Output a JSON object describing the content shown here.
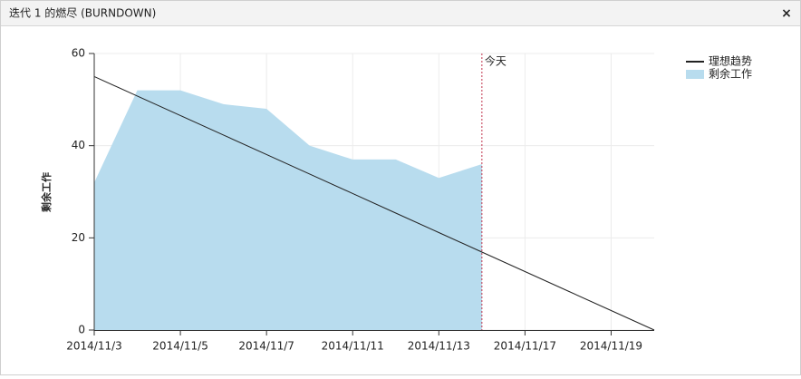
{
  "dialog": {
    "title": "迭代 1 的燃尽 (BURNDOWN)",
    "close": "×"
  },
  "chart_data": {
    "type": "line",
    "categories": [
      "2014/11/3",
      null,
      "2014/11/5",
      null,
      "2014/11/7",
      null,
      "2014/11/11",
      null,
      "2014/11/13",
      null,
      "2014/11/17",
      null,
      "2014/11/19",
      null
    ],
    "series": [
      {
        "name": "理想趋势",
        "style": "line",
        "color": "#222222",
        "values": [
          55,
          50.77,
          46.54,
          42.31,
          38.08,
          33.85,
          29.62,
          25.38,
          21.15,
          16.92,
          12.69,
          8.46,
          4.23,
          0
        ]
      },
      {
        "name": "剩余工作",
        "style": "area",
        "color": "#b8dcee",
        "values": [
          32,
          52,
          52,
          49,
          48,
          40,
          37,
          37,
          33,
          36,
          null,
          null,
          null,
          null
        ]
      }
    ],
    "ylabel": "剩余工作",
    "ylim": [
      0,
      60
    ],
    "yticks": [
      0,
      20,
      40,
      60
    ],
    "grid": true,
    "annotations": [
      {
        "label": "今天",
        "at": 9,
        "color": "#c0304a"
      }
    ],
    "legend": "top-right"
  }
}
